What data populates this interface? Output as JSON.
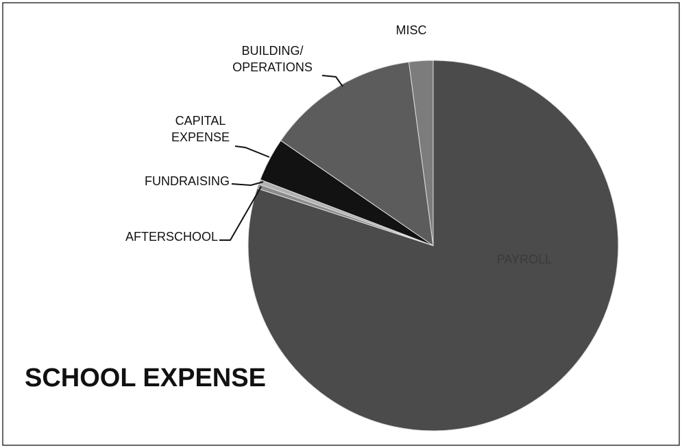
{
  "chart_data": {
    "type": "pie",
    "title": "SCHOOL EXPENSE",
    "categories": [
      "PAYROLL",
      "AFTERSCHOOL",
      "FUNDRAISING",
      "CAPITAL EXPENSE",
      "BUILDING/ OPERATIONS",
      "MISC"
    ],
    "values": [
      80,
      0.4,
      0.4,
      3.8,
      13.3,
      2.1
    ],
    "colors": [
      "#4b4b4b",
      "#8c8c8c",
      "#b0b0b0",
      "#121212",
      "#5c5c5c",
      "#7c7c7c"
    ]
  }
}
